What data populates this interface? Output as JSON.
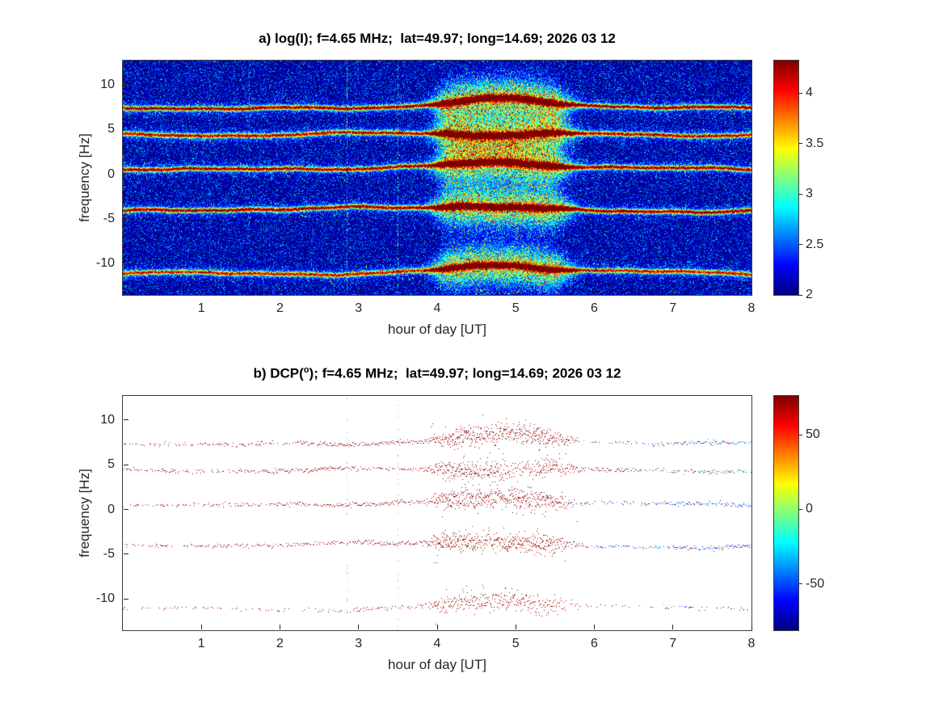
{
  "chart_data": [
    {
      "id": "panel-a",
      "type": "heatmap",
      "title": "a) log(I); f=4.65 MHz;  lat=49.97; long=14.69; 2026 03 12",
      "xlabel": "hour of day [UT]",
      "ylabel": "frequency [Hz]",
      "xlim": [
        0,
        8
      ],
      "ylim": [
        -13.5,
        12.7
      ],
      "xticks": [
        1,
        2,
        3,
        4,
        5,
        6,
        7,
        8
      ],
      "yticks": [
        10,
        5,
        0,
        -5,
        -10
      ],
      "colormap": "jet",
      "clim": [
        2,
        4.32
      ],
      "colorbar_ticks": [
        4,
        3.5,
        3,
        2.5,
        2
      ],
      "background_level": 2,
      "enhanced_interval_hours": [
        3.8,
        5.6
      ],
      "artifact_columns_hours": [
        1.1,
        1.6,
        2.85,
        3.5
      ],
      "bands": [
        {
          "center_hz": 7.5,
          "core_amp": 2.0,
          "wander_hz": 0.32,
          "bump_hz": 0.75,
          "seed": 11
        },
        {
          "center_hz": 4.5,
          "core_amp": 1.85,
          "wander_hz": 0.3,
          "bump_hz": -0.25,
          "seed": 22
        },
        {
          "center_hz": 0.7,
          "core_amp": 1.95,
          "wander_hz": 0.33,
          "bump_hz": 0.35,
          "seed": 33
        },
        {
          "center_hz": -4.0,
          "core_amp": 2.0,
          "wander_hz": 0.38,
          "bump_hz": 0.5,
          "seed": 44
        },
        {
          "center_hz": -11.0,
          "core_amp": 1.7,
          "wander_hz": 0.3,
          "bump_hz": 0.7,
          "seed": 55
        }
      ]
    },
    {
      "id": "panel-b",
      "type": "scatter",
      "title": "b) DCP(o); f=4.65 MHz;  lat=49.97; long=14.69; 2026 03 12",
      "title_parts": [
        "b) DCP(",
        "o",
        "); f=4.65 MHz;  lat=49.97; long=14.69; 2026 03 12"
      ],
      "xlabel": "hour of day [UT]",
      "ylabel": "frequency [Hz]",
      "xlim": [
        0,
        8
      ],
      "ylim": [
        -13.5,
        12.7
      ],
      "xticks": [
        1,
        2,
        3,
        4,
        5,
        6,
        7,
        8
      ],
      "yticks": [
        10,
        5,
        0,
        -5,
        -10
      ],
      "colormap": "jet",
      "clim": [
        -81,
        76
      ],
      "colorbar_ticks": [
        50,
        0,
        -50
      ],
      "dotted_columns_hours": [
        2.85,
        3.5
      ],
      "bands": [
        {
          "center_hz": 7.5,
          "wander_hz": 0.32,
          "bump_hz": 0.75,
          "seed": 11,
          "dcp_before_deg": 74,
          "transition_hour": 5.8,
          "blue_fraction_after": 0.7,
          "dcp_after_deg": -45
        },
        {
          "center_hz": 4.5,
          "wander_hz": 0.3,
          "bump_hz": -0.25,
          "seed": 22,
          "dcp_before_deg": 74,
          "transition_hour": 6.3,
          "blue_fraction_after": 0.5,
          "dcp_after_deg": -35
        },
        {
          "center_hz": 0.7,
          "wander_hz": 0.33,
          "bump_hz": 0.35,
          "seed": 33,
          "dcp_before_deg": 74,
          "transition_hour": 5.65,
          "blue_fraction_after": 0.75,
          "dcp_after_deg": -50
        },
        {
          "center_hz": -4.0,
          "wander_hz": 0.38,
          "bump_hz": 0.5,
          "seed": 44,
          "dcp_before_deg": 74,
          "transition_hour": 5.7,
          "blue_fraction_after": 0.75,
          "dcp_after_deg": -55
        },
        {
          "center_hz": -11.0,
          "wander_hz": 0.3,
          "bump_hz": 0.7,
          "seed": 55,
          "dcp_before_deg": 72,
          "transition_hour": 6.2,
          "blue_fraction_after": 0.85,
          "dcp_after_deg": -55,
          "density": 0.55
        }
      ]
    }
  ]
}
